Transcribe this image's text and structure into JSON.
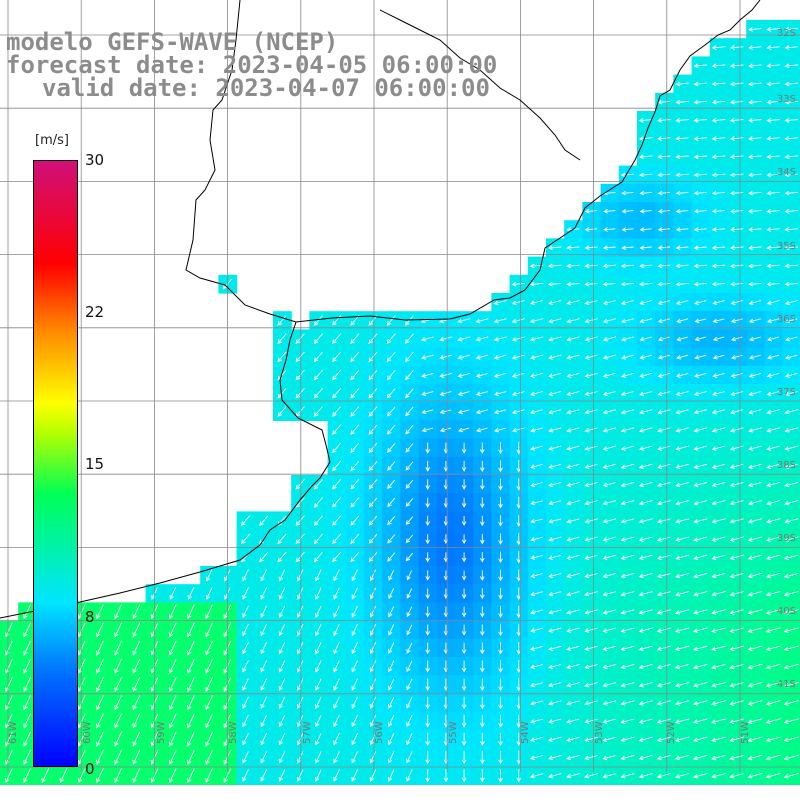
{
  "title": {
    "line1": "modelo GEFS-WAVE (NCEP)",
    "line2": "forecast date: 2023-04-05 06:00:00",
    "line3": "valid date: 2023-04-07 06:00:00"
  },
  "colorbar": {
    "unit": "[m/s]",
    "ticks": [
      "30",
      "22",
      "15",
      "8",
      "0"
    ],
    "min": 0,
    "max": 30,
    "colors": [
      "#0000ff",
      "#0077ff",
      "#00e5ff",
      "#00ff55",
      "#b4ff00",
      "#ffff00",
      "#ff8800",
      "#ff0000",
      "#d0107a"
    ]
  },
  "lat_labels": [
    "32S",
    "33S",
    "34S",
    "35S",
    "36S",
    "37S",
    "38S",
    "39S",
    "40S",
    "41S"
  ],
  "lon_labels": [
    "61W",
    "60W",
    "59W",
    "58W",
    "57W",
    "56W",
    "55W",
    "54W",
    "53W",
    "52W",
    "51W"
  ],
  "field": {
    "variable": "wind speed and direction",
    "ocean_color_low": "#0000ff",
    "ocean_color_high": "#00ff55",
    "land_color": "#ffffff",
    "arrow_color": "#ffffff"
  }
}
